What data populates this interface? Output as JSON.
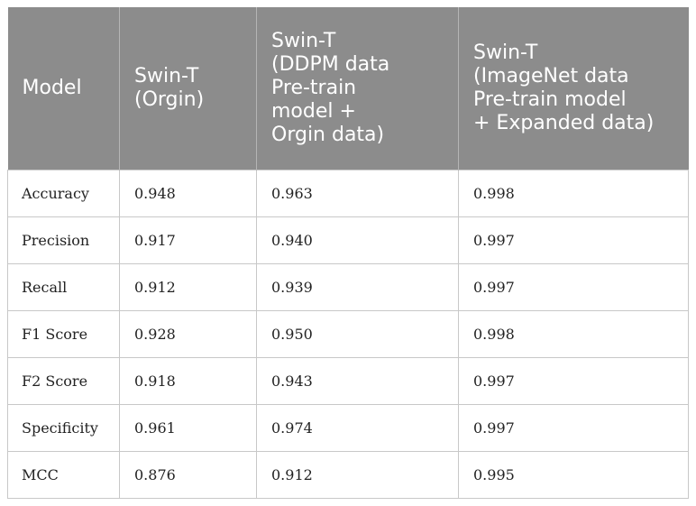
{
  "table": {
    "headers": [
      "Model",
      "Swin-T\n(Orgin)",
      "Swin-T\n(DDPM data\nPre-train\nmodel +\nOrgin data)",
      "Swin-T\n(ImageNet data\nPre-train model\n+ Expanded data)"
    ],
    "rows": [
      [
        "Accuracy",
        "0.948",
        "0.963",
        "0.998"
      ],
      [
        "Precision",
        "0.917",
        "0.940",
        "0.997"
      ],
      [
        "Recall",
        "0.912",
        "0.939",
        "0.997"
      ],
      [
        "F1 Score",
        "0.928",
        "0.950",
        "0.998"
      ],
      [
        "F2 Score",
        "0.918",
        "0.943",
        "0.997"
      ],
      [
        "Specificity",
        "0.961",
        "0.974",
        "0.997"
      ],
      [
        "MCC",
        "0.876",
        "0.912",
        "0.995"
      ]
    ]
  },
  "colors": {
    "header_bg": "#8c8c8c",
    "header_text": "#ffffff",
    "grid": "#c8c8c8"
  }
}
